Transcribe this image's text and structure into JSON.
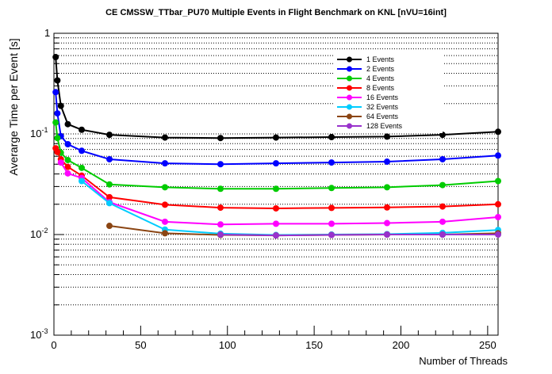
{
  "page": {
    "background": "#ffffff"
  },
  "chart_data": {
    "type": "line",
    "title": "CE CMSSW_TTbar_PU70 Multiple Events in Flight Benchmark on KNL [nVU=16int]",
    "xlabel": "Number of Threads",
    "ylabel": "Averarge Time per Event [s]",
    "x_scale": "linear",
    "y_scale": "log",
    "xlim": [
      0,
      256
    ],
    "ylim": [
      0.001,
      1
    ],
    "x_ticks_major": [
      0,
      50,
      100,
      150,
      200,
      250
    ],
    "x_tick_minor_step": 10,
    "y_tick_labels": [
      "1",
      "10^-1",
      "10^-2",
      "10^-3"
    ],
    "grid": "horizontal dotted lines at every log minor and major position",
    "legend_position": "top-center-right inside frame",
    "marker": "filled-circle",
    "series": [
      {
        "name": "1 Events",
        "color": "#000000",
        "x": [
          1,
          2,
          4,
          8,
          16,
          32,
          64,
          96,
          128,
          160,
          192,
          224,
          256
        ],
        "y": [
          0.58,
          0.34,
          0.19,
          0.125,
          0.11,
          0.098,
          0.092,
          0.091,
          0.092,
          0.093,
          0.094,
          0.098,
          0.105
        ]
      },
      {
        "name": "2 Events",
        "color": "#0000ff",
        "x": [
          1,
          2,
          4,
          8,
          16,
          32,
          64,
          96,
          128,
          160,
          192,
          224,
          256
        ],
        "y": [
          0.26,
          0.16,
          0.095,
          0.079,
          0.068,
          0.056,
          0.051,
          0.05,
          0.051,
          0.052,
          0.053,
          0.056,
          0.061
        ]
      },
      {
        "name": "4 Events",
        "color": "#00cc00",
        "x": [
          1,
          2,
          4,
          8,
          16,
          32,
          64,
          96,
          128,
          160,
          192,
          224,
          256
        ],
        "y": [
          0.13,
          0.091,
          0.065,
          0.055,
          0.046,
          0.0315,
          0.0295,
          0.0285,
          0.0285,
          0.029,
          0.0295,
          0.031,
          0.034
        ]
      },
      {
        "name": "8 Events",
        "color": "#ff0000",
        "x": [
          1,
          2,
          4,
          8,
          16,
          32,
          64,
          96,
          128,
          160,
          192,
          224,
          256
        ],
        "y": [
          0.072,
          0.066,
          0.056,
          0.047,
          0.0385,
          0.0235,
          0.0198,
          0.0185,
          0.0182,
          0.0184,
          0.0186,
          0.019,
          0.02
        ]
      },
      {
        "name": "16 Events",
        "color": "#ff00ff",
        "x": [
          4,
          8,
          16,
          32,
          64,
          96,
          128,
          160,
          192,
          224,
          256
        ],
        "y": [
          0.052,
          0.0405,
          0.0365,
          0.021,
          0.0134,
          0.0126,
          0.0128,
          0.0128,
          0.013,
          0.0134,
          0.0149
        ]
      },
      {
        "name": "32 Events",
        "color": "#00ccff",
        "x": [
          16,
          32,
          64,
          96,
          128,
          160,
          192,
          224,
          256
        ],
        "y": [
          0.034,
          0.0205,
          0.0112,
          0.0102,
          0.0099,
          0.01,
          0.0101,
          0.0104,
          0.0111
        ]
      },
      {
        "name": "64 Events",
        "color": "#8b4513",
        "x": [
          32,
          64,
          96,
          128,
          160,
          192,
          224,
          256
        ],
        "y": [
          0.0122,
          0.0103,
          0.0099,
          0.0098,
          0.0099,
          0.01,
          0.01,
          0.0103
        ]
      },
      {
        "name": "128 Events",
        "color": "#9932cc",
        "x": [
          96,
          128,
          160,
          192,
          224,
          256
        ],
        "y": [
          0.01,
          0.0098,
          0.0099,
          0.01,
          0.01,
          0.01
        ]
      }
    ]
  }
}
